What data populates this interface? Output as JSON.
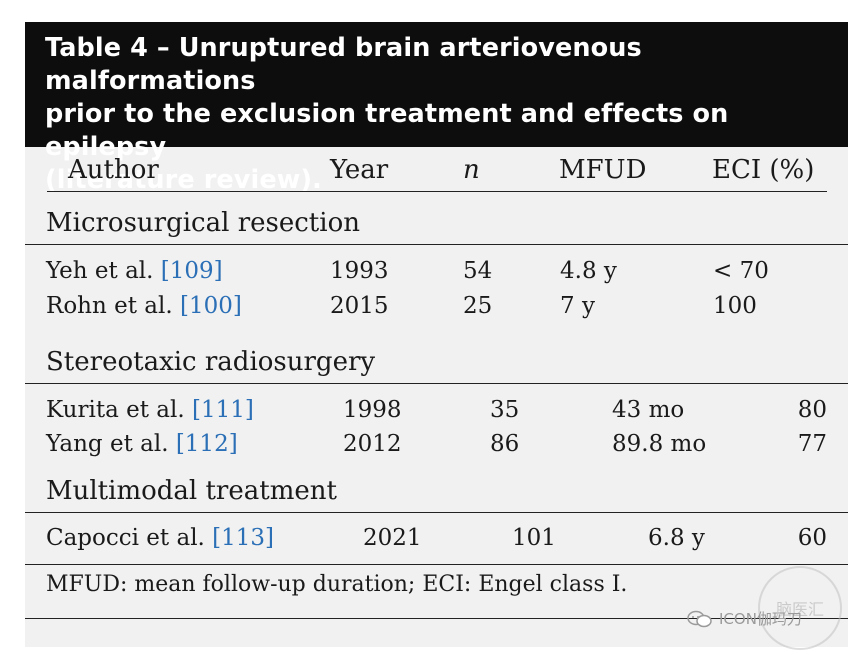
{
  "title": "Table 4 – Unruptured brain arteriovenous malformations prior to the exclusion treatment and effects on epilepsy (literature review).",
  "title_lines": [
    "Table 4 – Unruptured brain arteriovenous malformations",
    "prior to the exclusion treatment and effects on epilepsy",
    "(literature review)."
  ],
  "columns": [
    "Author",
    "Year",
    "n",
    "MFUD",
    "ECI (%)"
  ],
  "sections": [
    {
      "label": "Microsurgical resection",
      "rows": [
        {
          "author": "Yeh et al.",
          "ref": "[109]",
          "year": "1993",
          "n": "54",
          "mfud": "4.8 y",
          "eci": "< 70"
        },
        {
          "author": "Rohn et al.",
          "ref": "[100]",
          "year": "2015",
          "n": "25",
          "mfud": "7 y",
          "eci": "100"
        }
      ]
    },
    {
      "label": "Stereotaxic radiosurgery",
      "rows": [
        {
          "author": "Kurita et al.",
          "ref": "[111]",
          "year": "1998",
          "n": "35",
          "mfud": "43 mo",
          "eci": "80"
        },
        {
          "author": "Yang et al.",
          "ref": "[112]",
          "year": "2012",
          "n": "86",
          "mfud": "89.8 mo",
          "eci": "77"
        }
      ]
    },
    {
      "label": "Multimodal treatment",
      "rows": [
        {
          "author": "Capocci et al.",
          "ref": "[113]",
          "year": "2021",
          "n": "101",
          "mfud": "6.8 y",
          "eci": "60"
        }
      ]
    }
  ],
  "footnote": "MFUD: mean follow-up duration; ECI: Engel class I.",
  "watermark": {
    "text": "ICON伽玛刀",
    "seal_text": "脑医汇"
  },
  "colors": {
    "title_bg": "#0d0d0d",
    "card_bg": "#f1f1f1",
    "ref_link": "#2b6fb6"
  }
}
